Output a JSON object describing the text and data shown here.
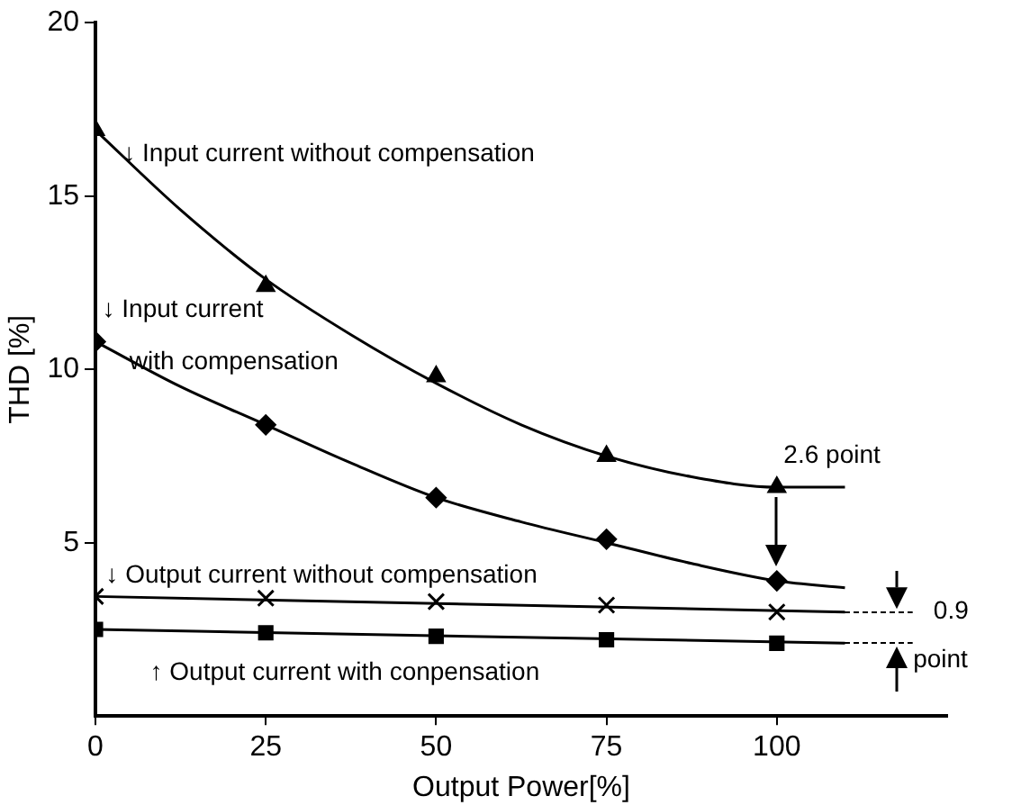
{
  "chart_data": {
    "type": "line",
    "xlabel": "Output Power[%]",
    "ylabel": "THD [%]",
    "xlim": [
      0,
      125
    ],
    "xticks": [
      0,
      25,
      50,
      75,
      100
    ],
    "ylim": [
      0,
      20
    ],
    "yticks": [
      5,
      10,
      15,
      20
    ],
    "grid": false,
    "legend": false,
    "series": [
      {
        "marker": "none",
        "color": "#000000",
        "x": [
          0,
          12.5,
          25,
          37.5,
          50,
          62.5,
          75,
          87.5,
          100,
          110
        ],
        "values": [
          16.9,
          14.6,
          12.6,
          11.0,
          9.6,
          8.4,
          7.5,
          6.9,
          6.6,
          6.6
        ]
      },
      {
        "marker": "none",
        "color": "#000000",
        "x": [
          0,
          12.5,
          25,
          37.5,
          50,
          62.5,
          75,
          87.5,
          100,
          110
        ],
        "values": [
          10.8,
          9.5,
          8.4,
          7.3,
          6.3,
          5.6,
          5.0,
          4.4,
          3.9,
          3.7
        ]
      },
      {
        "marker": "none",
        "color": "#000000",
        "x": [
          0,
          110
        ],
        "values": [
          3.45,
          3.0
        ]
      },
      {
        "marker": "none",
        "color": "#000000",
        "x": [
          0,
          110
        ],
        "values": [
          2.5,
          2.1
        ]
      },
      {
        "type": "scatter",
        "marker": "triangle",
        "color": "#000000",
        "x": [
          0,
          25,
          50,
          75,
          100
        ],
        "values": [
          16.9,
          12.4,
          9.8,
          7.5,
          6.6
        ]
      },
      {
        "type": "scatter",
        "marker": "diamond",
        "color": "#000000",
        "x": [
          0,
          25,
          50,
          75,
          100
        ],
        "values": [
          10.8,
          8.4,
          6.3,
          5.1,
          3.9
        ]
      },
      {
        "type": "scatter",
        "marker": "cross",
        "color": "#000000",
        "x": [
          0,
          25,
          50,
          75,
          100
        ],
        "values": [
          3.45,
          3.4,
          3.3,
          3.2,
          3.0
        ]
      },
      {
        "type": "scatter",
        "marker": "square",
        "color": "#000000",
        "x": [
          0,
          25,
          50,
          75,
          100
        ],
        "values": [
          2.5,
          2.4,
          2.3,
          2.2,
          2.1
        ]
      }
    ],
    "annotations": [
      "↓ Input current without compensation",
      "↓ Input current",
      "with compensation",
      "↓ Output current without compensation",
      "↑ Output current with conpensation",
      "2.6 point",
      "0.9",
      "point"
    ]
  }
}
